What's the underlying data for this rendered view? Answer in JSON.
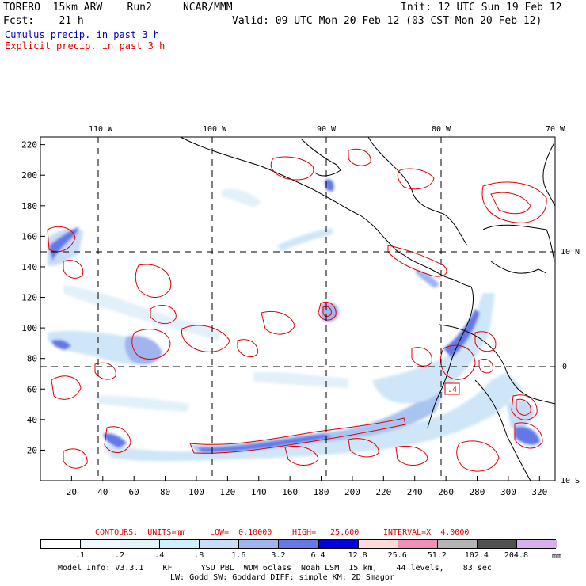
{
  "header": {
    "model": "TORERO  15km ARW    Run2     NCAR/MMM",
    "init": "Init: 12 UTC Sun 19 Feb 12",
    "fcst": "Fcst:    21 h",
    "valid": "Valid: 09 UTC Mon 20 Feb 12 (03 CST Mon 20 Feb 12)",
    "legend_cumulus": "Cumulus precip. in past 3 h",
    "legend_explicit": "Explicit precip. in past 3 h"
  },
  "map": {
    "top_lon_labels": [
      "110 W",
      "100 W",
      "90 W",
      "80 W",
      "70 W"
    ],
    "right_lat_labels": [
      "10 N",
      "0",
      "10 S"
    ],
    "y_ticks": [
      "220",
      "200",
      "180",
      "160",
      "140",
      "120",
      "100",
      "80",
      "60",
      "40",
      "20"
    ],
    "x_ticks": [
      "20",
      "40",
      "60",
      "80",
      "100",
      "120",
      "140",
      "160",
      "180",
      "200",
      "220",
      "240",
      "260",
      "280",
      "300",
      "320"
    ],
    "x_range": [
      0,
      330
    ],
    "y_range": [
      0,
      225
    ],
    "contour_label": ".4"
  },
  "contours_line": {
    "contours": "CONTOURS:  UNITS=mm",
    "low": "LOW=  0.10000",
    "high": "HIGH=   25.600",
    "interval": "INTERVAL=X  4.0000"
  },
  "colorbar": {
    "levels": [
      ".1",
      ".2",
      ".4",
      ".8",
      "1.6",
      "3.2",
      "6.4",
      "12.8",
      "25.6",
      "51.2",
      "102.4",
      "204.8"
    ],
    "unit": "mm",
    "colors": [
      "#ffffff",
      "#f0f8ff",
      "#e2f4f8",
      "#cff0f8",
      "#c8dcf8",
      "#a0b4f0",
      "#6478e8",
      "#0000e0",
      "#ffd8d8",
      "#f090b8",
      "#b4b4b4",
      "#505050",
      "#d8b0f0"
    ]
  },
  "footer": {
    "line1": "Model Info: V3.3.1    KF      YSU PBL  WDM 6class  Noah LSM  15 km,    44 levels,    83 sec",
    "line2": "LW: Godd SW: Goddard DIFF: simple KM: 2D Smagor"
  }
}
